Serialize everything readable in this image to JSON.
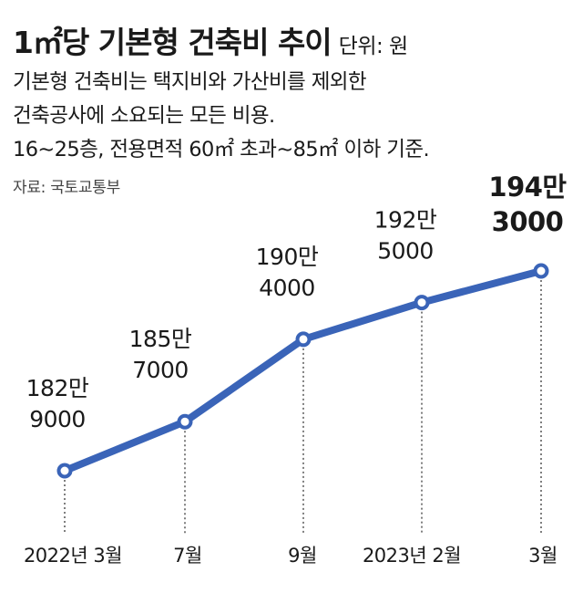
{
  "header": {
    "title": "1㎡당 기본형 건축비 추이",
    "unit": "단위: 원",
    "description": [
      "기본형 건축비는 택지비와 가산비를 제외한",
      "건축공사에 소요되는 모든 비용.",
      "16∼25층, 전용면적 60㎡ 초과∼85㎡ 이하 기준."
    ],
    "source": "자료: 국토교통부"
  },
  "colors": {
    "line": "#3a64b8",
    "marker_fill": "#ffffff",
    "guide": "#555555"
  },
  "chart_data": {
    "type": "line",
    "title": "1㎡당 기본형 건축비 추이",
    "unit": "단위: 원",
    "categories": [
      "2022년 3월",
      "7월",
      "9월",
      "2023년 2월",
      "3월"
    ],
    "values": [
      1829000,
      1857000,
      1904000,
      1925000,
      1943000
    ],
    "value_labels": [
      [
        "182만",
        "9000"
      ],
      [
        "185만",
        "7000"
      ],
      [
        "190만",
        "4000"
      ],
      [
        "192만",
        "5000"
      ],
      [
        "194만",
        "3000"
      ]
    ],
    "grid": false,
    "legend": "none"
  }
}
